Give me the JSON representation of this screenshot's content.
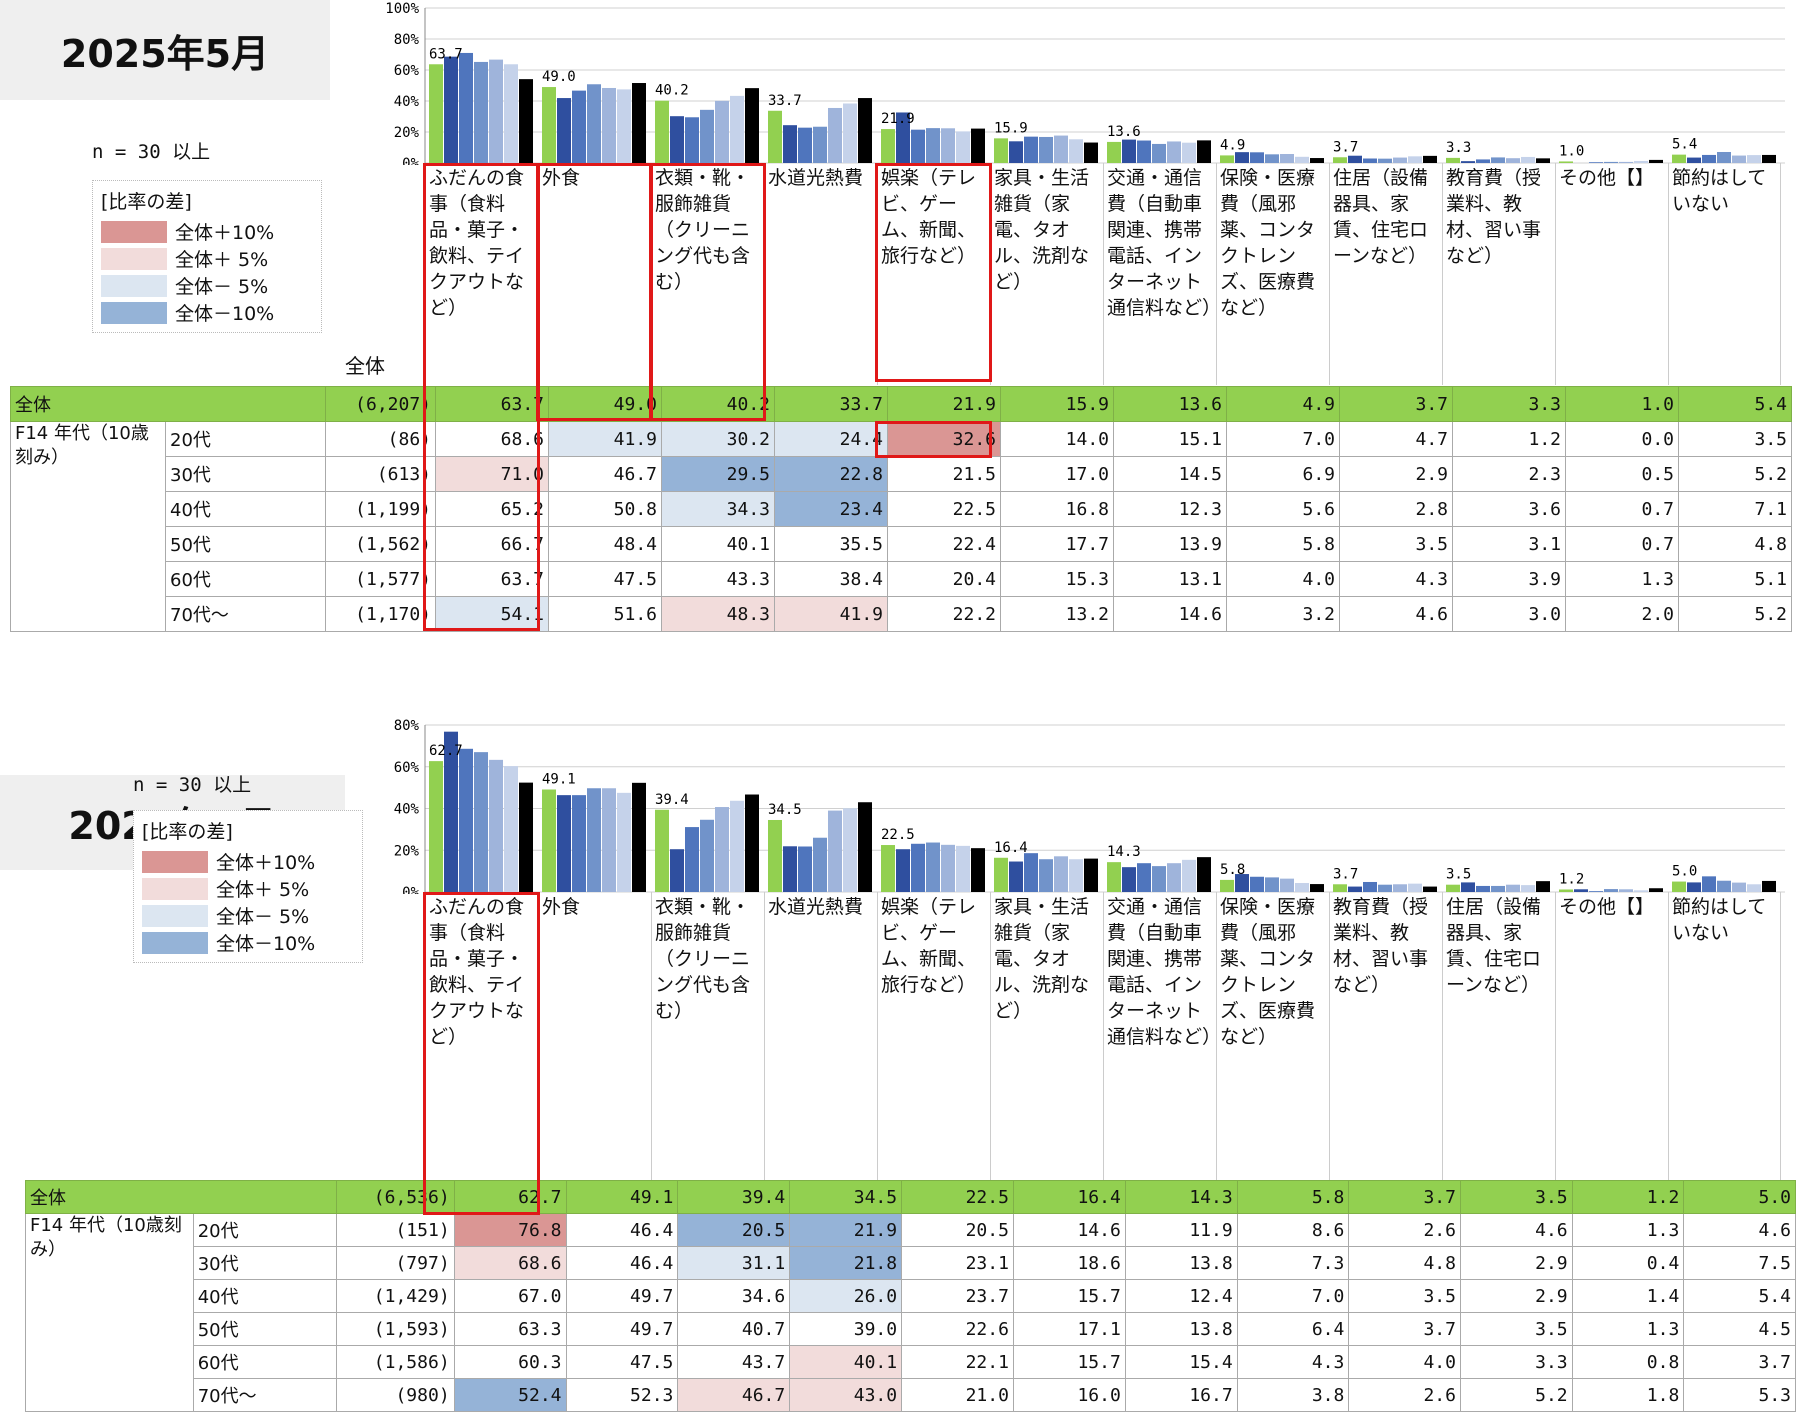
{
  "colors": {
    "plus10": "#da9694",
    "plus5": "#f2dcdb",
    "minus5": "#dce6f1",
    "minus10": "#95b3d7",
    "total_row": "#92d050",
    "highlight": "#e01818",
    "bars": [
      "#92d050",
      "#2f4f9f",
      "#4f75bd",
      "#7193ca",
      "#9fb4db",
      "#c5d2ea"
    ]
  },
  "panels": [
    {
      "year_label": "2025年5月",
      "n_note": "n = 30 以上",
      "legend": {
        "title": "[比率の差]",
        "items": [
          "全体＋10%",
          "全体＋ 5%",
          "全体－ 5%",
          "全体－10%"
        ]
      },
      "zentai_header": "全体",
      "categories": [
        "ふだんの食事（食料品・菓子・飲料、テイクアウトなど）",
        "外食",
        "衣類・靴・服飾雑貨（クリーニング代も含む）",
        "水道光熱費",
        "娯楽（テレビ、ゲーム、新聞、旅行など）",
        "家具・生活雑貨（家電、タオル、洗剤など）",
        "交通・通信費（自動車関連、携帯電話、インターネット通信料など）",
        "保険・医療費（風邪薬、コンタクトレンズ、医療費など）",
        "住居（設備器具、家賃、住宅ローンなど）",
        "教育費（授業料、教材、習い事など）",
        "その他【】",
        "節約はしていない"
      ],
      "total_row": {
        "label": "全体",
        "n": "(6,207)",
        "values": [
          "63.7",
          "49.0",
          "40.2",
          "33.7",
          "21.9",
          "15.9",
          "13.6",
          "4.9",
          "3.7",
          "3.3",
          "1.0",
          "5.4"
        ]
      },
      "group_label": "F14 年代（10歳刻み）",
      "rows": [
        {
          "label": "20代",
          "n": "(86)",
          "values": [
            "68.6",
            "41.9",
            "30.2",
            "24.4",
            "32.6",
            "14.0",
            "15.1",
            "7.0",
            "4.7",
            "1.2",
            "0.0",
            "3.5"
          ],
          "shade": [
            "",
            "minus5",
            "minus5",
            "minus5",
            "plus10",
            "",
            "",
            "",
            "",
            "",
            "",
            ""
          ]
        },
        {
          "label": "30代",
          "n": "(613)",
          "values": [
            "71.0",
            "46.7",
            "29.5",
            "22.8",
            "21.5",
            "17.0",
            "14.5",
            "6.9",
            "2.9",
            "2.3",
            "0.5",
            "5.2"
          ],
          "shade": [
            "plus5",
            "",
            "minus10",
            "minus10",
            "",
            "",
            "",
            "",
            "",
            "",
            "",
            ""
          ]
        },
        {
          "label": "40代",
          "n": "(1,199)",
          "values": [
            "65.2",
            "50.8",
            "34.3",
            "23.4",
            "22.5",
            "16.8",
            "12.3",
            "5.6",
            "2.8",
            "3.6",
            "0.7",
            "7.1"
          ],
          "shade": [
            "",
            "",
            "minus5",
            "minus10",
            "",
            "",
            "",
            "",
            "",
            "",
            "",
            ""
          ]
        },
        {
          "label": "50代",
          "n": "(1,562)",
          "values": [
            "66.7",
            "48.4",
            "40.1",
            "35.5",
            "22.4",
            "17.7",
            "13.9",
            "5.8",
            "3.5",
            "3.1",
            "0.7",
            "4.8"
          ],
          "shade": [
            "",
            "",
            "",
            "",
            "",
            "",
            "",
            "",
            "",
            "",
            "",
            ""
          ]
        },
        {
          "label": "60代",
          "n": "(1,577)",
          "values": [
            "63.7",
            "47.5",
            "43.3",
            "38.4",
            "20.4",
            "15.3",
            "13.1",
            "4.0",
            "4.3",
            "3.9",
            "1.3",
            "5.1"
          ],
          "shade": [
            "",
            "",
            "",
            "",
            "",
            "",
            "",
            "",
            "",
            "",
            "",
            ""
          ]
        },
        {
          "label": "70代～",
          "n": "(1,170)",
          "values": [
            "54.1",
            "51.6",
            "48.3",
            "41.9",
            "22.2",
            "13.2",
            "14.6",
            "3.2",
            "4.6",
            "3.0",
            "2.0",
            "5.2"
          ],
          "shade": [
            "minus5",
            "",
            "plus5",
            "plus5",
            "",
            "",
            "",
            "",
            "",
            "",
            "",
            ""
          ]
        }
      ],
      "chart_data": {
        "type": "bar",
        "y_ticks": [
          "100%",
          "80%",
          "60%",
          "40%",
          "20%",
          "0%"
        ],
        "ylim": [
          0,
          100
        ],
        "bar_labels": [
          "63.7",
          "49.0",
          "40.2",
          "33.7",
          "21.9",
          "15.9",
          "13.6",
          "4.9",
          "3.7",
          "3.3",
          "1.0",
          "5.4"
        ]
      }
    },
    {
      "year_label": "2024年5月",
      "n_note": "n = 30 以上",
      "legend": {
        "title": "[比率の差]",
        "items": [
          "全体＋10%",
          "全体＋ 5%",
          "全体－ 5%",
          "全体－10%"
        ]
      },
      "zentai_header": "",
      "categories": [
        "ふだんの食事（食料品・菓子・飲料、テイクアウトなど）",
        "外食",
        "衣類・靴・服飾雑貨（クリーニング代も含む）",
        "水道光熱費",
        "娯楽（テレビ、ゲーム、新聞、旅行など）",
        "家具・生活雑貨（家電、タオル、洗剤など）",
        "交通・通信費（自動車関連、携帯電話、インターネット通信料など）",
        "保険・医療費（風邪薬、コンタクトレンズ、医療費など）",
        "教育費（授業料、教材、習い事など）",
        "住居（設備器具、家賃、住宅ローンなど）",
        "その他【】",
        "節約はしていない"
      ],
      "total_row": {
        "label": "全体",
        "n": "(6,536)",
        "values": [
          "62.7",
          "49.1",
          "39.4",
          "34.5",
          "22.5",
          "16.4",
          "14.3",
          "5.8",
          "3.7",
          "3.5",
          "1.2",
          "5.0"
        ]
      },
      "group_label": "F14 年代（10歳刻み）",
      "rows": [
        {
          "label": "20代",
          "n": "(151)",
          "values": [
            "76.8",
            "46.4",
            "20.5",
            "21.9",
            "20.5",
            "14.6",
            "11.9",
            "8.6",
            "2.6",
            "4.6",
            "1.3",
            "4.6"
          ],
          "shade": [
            "plus10",
            "",
            "minus10",
            "minus10",
            "",
            "",
            "",
            "",
            "",
            "",
            "",
            ""
          ]
        },
        {
          "label": "30代",
          "n": "(797)",
          "values": [
            "68.6",
            "46.4",
            "31.1",
            "21.8",
            "23.1",
            "18.6",
            "13.8",
            "7.3",
            "4.8",
            "2.9",
            "0.4",
            "7.5"
          ],
          "shade": [
            "plus5",
            "",
            "minus5",
            "minus10",
            "",
            "",
            "",
            "",
            "",
            "",
            "",
            ""
          ]
        },
        {
          "label": "40代",
          "n": "(1,429)",
          "values": [
            "67.0",
            "49.7",
            "34.6",
            "26.0",
            "23.7",
            "15.7",
            "12.4",
            "7.0",
            "3.5",
            "2.9",
            "1.4",
            "5.4"
          ],
          "shade": [
            "",
            "",
            "",
            "minus5",
            "",
            "",
            "",
            "",
            "",
            "",
            "",
            ""
          ]
        },
        {
          "label": "50代",
          "n": "(1,593)",
          "values": [
            "63.3",
            "49.7",
            "40.7",
            "39.0",
            "22.6",
            "17.1",
            "13.8",
            "6.4",
            "3.7",
            "3.5",
            "1.3",
            "4.5"
          ],
          "shade": [
            "",
            "",
            "",
            "",
            "",
            "",
            "",
            "",
            "",
            "",
            "",
            ""
          ]
        },
        {
          "label": "60代",
          "n": "(1,586)",
          "values": [
            "60.3",
            "47.5",
            "43.7",
            "40.1",
            "22.1",
            "15.7",
            "15.4",
            "4.3",
            "4.0",
            "3.3",
            "0.8",
            "3.7"
          ],
          "shade": [
            "",
            "",
            "",
            "plus5",
            "",
            "",
            "",
            "",
            "",
            "",
            "",
            ""
          ]
        },
        {
          "label": "70代～",
          "n": "(980)",
          "values": [
            "52.4",
            "52.3",
            "46.7",
            "43.0",
            "21.0",
            "16.0",
            "16.7",
            "3.8",
            "2.6",
            "5.2",
            "1.8",
            "5.3"
          ],
          "shade": [
            "minus10",
            "",
            "plus5",
            "plus5",
            "",
            "",
            "",
            "",
            "",
            "",
            "",
            ""
          ]
        }
      ],
      "chart_data": {
        "type": "bar",
        "y_ticks": [
          "80%",
          "60%",
          "40%",
          "20%",
          "0%"
        ],
        "ylim": [
          0,
          80
        ],
        "bar_labels": [
          "62.7",
          "49.1",
          "39.4",
          "34.5",
          "22.5",
          "16.4",
          "14.3",
          "5.8",
          "3.7",
          "3.5",
          "1.2",
          "5.0"
        ]
      }
    }
  ]
}
